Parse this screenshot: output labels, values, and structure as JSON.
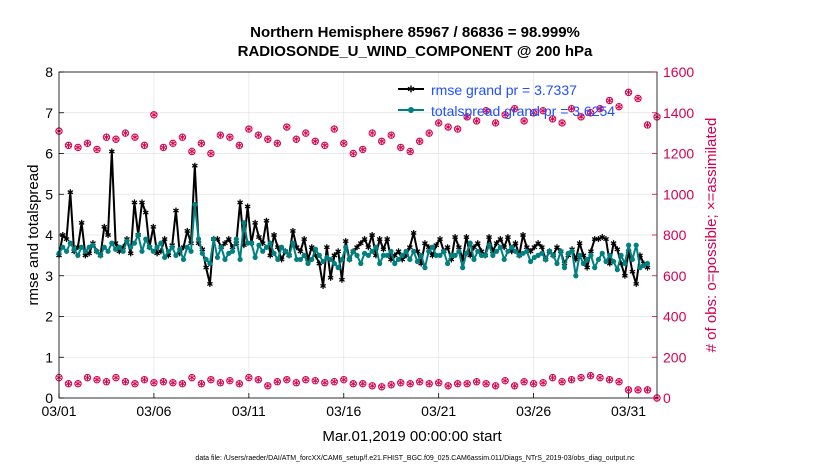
{
  "chart_data": {
    "type": "line",
    "title": "Northern Hemisphere 85967 / 86836 = 98.999%",
    "subtitle": "RADIOSONDE_U_WIND_COMPONENT @ 200 hPa",
    "xlabel": "Mar.01,2019 00:00:00 start",
    "ylabel": "rmse and totalspread",
    "y2label": "# of obs: o=possible; ×=assimilated",
    "xlim": [
      0,
      31.5
    ],
    "ylim": [
      0,
      8
    ],
    "y2lim": [
      0,
      1600
    ],
    "x_ticks": [
      0,
      5,
      10,
      15,
      20,
      25,
      30
    ],
    "x_tick_labels": [
      "03/01",
      "03/06",
      "03/11",
      "03/16",
      "03/21",
      "03/26",
      "03/31"
    ],
    "y_ticks": [
      "0",
      "1",
      "2",
      "3",
      "4",
      "5",
      "6",
      "7",
      "8"
    ],
    "y2_ticks": [
      "0",
      "200",
      "400",
      "600",
      "800",
      "1000",
      "1200",
      "1400",
      "1600"
    ],
    "grid": true,
    "legend_position": "top-right",
    "series": [
      {
        "name": "rmse",
        "legend": "rmse grand pr = 3.7337",
        "color": "#000000",
        "axis": "left",
        "marker": "asterisk",
        "values": [
          3.5,
          4.0,
          3.9,
          5.05,
          3.6,
          3.7,
          4.3,
          3.5,
          3.55,
          3.8,
          3.6,
          3.5,
          4.2,
          4.0,
          6.05,
          3.8,
          3.6,
          3.7,
          3.9,
          3.55,
          4.8,
          4.0,
          4.8,
          4.55,
          3.7,
          4.2,
          3.55,
          3.6,
          3.9,
          3.5,
          3.75,
          4.6,
          3.55,
          3.7,
          4.1,
          3.8,
          5.7,
          3.8,
          3.65,
          3.2,
          2.8,
          3.9,
          3.9,
          3.7,
          3.8,
          3.9,
          3.7,
          3.8,
          4.8,
          3.75,
          4.7,
          3.8,
          4.3,
          3.95,
          3.8,
          4.35,
          3.5,
          4.0,
          3.7,
          3.4,
          3.6,
          3.5,
          4.1,
          3.7,
          3.6,
          3.9,
          3.4,
          3.7,
          3.5,
          3.3,
          2.75,
          3.7,
          2.95,
          3.5,
          3.6,
          2.9,
          3.85,
          3.4,
          3.6,
          3.7,
          3.8,
          3.9,
          3.7,
          4.0,
          3.5,
          3.9,
          3.65,
          3.9,
          3.4,
          3.5,
          3.6,
          3.4,
          3.5,
          3.7,
          4.05,
          3.6,
          3.3,
          3.8,
          3.7,
          3.5,
          3.75,
          3.9,
          3.6,
          3.7,
          3.4,
          3.95,
          3.7,
          3.4,
          3.95,
          3.5,
          3.7,
          3.8,
          3.6,
          3.5,
          3.95,
          3.6,
          3.8,
          3.9,
          3.7,
          3.95,
          3.6,
          3.8,
          3.5,
          4.0,
          3.7,
          3.6,
          3.7,
          3.8,
          3.7,
          3.4,
          3.6,
          3.5,
          3.7,
          3.6,
          3.3,
          3.5,
          3.65,
          3.4,
          3.8,
          3.5,
          3.2,
          3.6,
          3.9,
          3.9,
          3.95,
          3.9,
          3.3,
          3.8,
          3.65,
          3.3,
          3.0,
          3.6,
          3.1,
          2.8,
          3.5,
          3.3,
          3.2
        ]
      },
      {
        "name": "totalspread",
        "legend": "totalspread grand pr = 3.6254",
        "color": "#008080",
        "axis": "left",
        "marker": "dot",
        "values": [
          3.55,
          3.7,
          3.6,
          3.8,
          3.65,
          3.5,
          3.7,
          3.6,
          3.7,
          3.75,
          3.6,
          3.5,
          3.7,
          3.6,
          3.8,
          3.65,
          3.7,
          3.6,
          3.85,
          3.7,
          3.8,
          4.0,
          3.6,
          3.9,
          3.7,
          3.6,
          3.7,
          3.8,
          3.45,
          3.6,
          3.7,
          3.5,
          3.65,
          3.4,
          3.7,
          3.6,
          4.75,
          3.9,
          3.55,
          3.4,
          3.3,
          3.9,
          3.45,
          3.7,
          3.4,
          3.55,
          3.6,
          3.9,
          3.4,
          4.3,
          3.8,
          3.8,
          3.45,
          3.75,
          3.6,
          3.7,
          3.8,
          3.55,
          3.4,
          3.7,
          3.6,
          3.5,
          3.8,
          3.4,
          3.4,
          3.5,
          3.3,
          3.4,
          3.65,
          3.5,
          3.35,
          3.45,
          3.4,
          3.3,
          3.2,
          3.4,
          3.7,
          3.4,
          3.6,
          3.5,
          3.3,
          3.55,
          3.5,
          3.6,
          3.7,
          3.3,
          3.5,
          3.5,
          3.6,
          3.3,
          3.4,
          3.5,
          3.6,
          3.4,
          3.6,
          3.35,
          3.5,
          3.2,
          3.6,
          3.7,
          3.5,
          3.5,
          3.6,
          3.3,
          3.5,
          3.5,
          3.6,
          3.2,
          3.55,
          3.8,
          3.4,
          3.6,
          3.5,
          3.5,
          3.75,
          3.5,
          3.6,
          3.7,
          3.4,
          3.6,
          3.7,
          3.6,
          3.5,
          3.55,
          3.6,
          3.35,
          3.45,
          3.5,
          3.55,
          3.4,
          3.6,
          3.5,
          3.3,
          3.6,
          3.2,
          3.55,
          3.6,
          3.0,
          3.5,
          3.3,
          3.4,
          3.5,
          3.2,
          3.4,
          3.55,
          3.35,
          3.5,
          3.35,
          3.15,
          3.5,
          3.3,
          3.75,
          3.4,
          3.75,
          3.2,
          3.25,
          3.3
        ]
      },
      {
        "name": "obs possible",
        "legend": "",
        "color": "#d6004f",
        "axis": "right",
        "marker": "circle",
        "x": [
          0.0,
          0.5,
          1.0,
          1.5,
          2.0,
          2.5,
          3.0,
          3.5,
          4.0,
          4.5,
          5.0,
          5.5,
          6.0,
          6.5,
          7.0,
          7.5,
          8.0,
          8.5,
          9.0,
          9.5,
          10.0,
          10.5,
          11.0,
          11.5,
          12.0,
          12.5,
          13.0,
          13.5,
          14.0,
          14.5,
          15.0,
          15.5,
          16.0,
          16.5,
          17.0,
          17.5,
          18.0,
          18.5,
          19.0,
          19.5,
          20.0,
          20.5,
          21.0,
          21.5,
          22.0,
          22.5,
          23.0,
          23.5,
          24.0,
          24.5,
          25.0,
          25.5,
          26.0,
          26.5,
          27.0,
          27.5,
          28.0,
          28.5,
          29.0,
          29.5,
          30.0,
          30.5,
          31.0,
          31.5
        ],
        "upper": [
          1310,
          1240,
          1230,
          1250,
          1220,
          1280,
          1270,
          1300,
          1280,
          1240,
          1390,
          1230,
          1250,
          1280,
          1210,
          1250,
          1200,
          1290,
          1280,
          1240,
          1320,
          1290,
          1270,
          1250,
          1330,
          1270,
          1300,
          1260,
          1240,
          1320,
          1250,
          1200,
          1220,
          1300,
          1260,
          1290,
          1230,
          1210,
          1260,
          1300,
          1350,
          1330,
          1320,
          1380,
          1360,
          1410,
          1350,
          1390,
          1420,
          1360,
          1400,
          1410,
          1370,
          1350,
          1420,
          1380,
          1400,
          1420,
          1460,
          1430,
          1500,
          1470,
          1340,
          1380
        ],
        "lower": [
          100,
          70,
          70,
          100,
          90,
          80,
          100,
          80,
          70,
          90,
          75,
          80,
          75,
          70,
          100,
          70,
          90,
          75,
          85,
          70,
          100,
          90,
          60,
          80,
          90,
          75,
          90,
          85,
          75,
          80,
          90,
          70,
          70,
          60,
          55,
          65,
          75,
          70,
          80,
          70,
          75,
          60,
          70,
          70,
          80,
          70,
          60,
          85,
          60,
          80,
          70,
          75,
          100,
          80,
          90,
          100,
          110,
          100,
          90,
          80,
          40,
          40,
          40,
          0
        ]
      },
      {
        "name": "obs assimilated",
        "legend": "",
        "color": "#d6004f",
        "axis": "right",
        "marker": "asterisk",
        "same_as": "obs possible"
      }
    ]
  },
  "footer": "data file: /Users/raeder/DAI/ATM_forcXX/CAM6_setup/f.e21.FHIST_BGC.f09_025.CAM6assim.011/Diags_NTrS_2019-03/obs_diag_output.nc"
}
